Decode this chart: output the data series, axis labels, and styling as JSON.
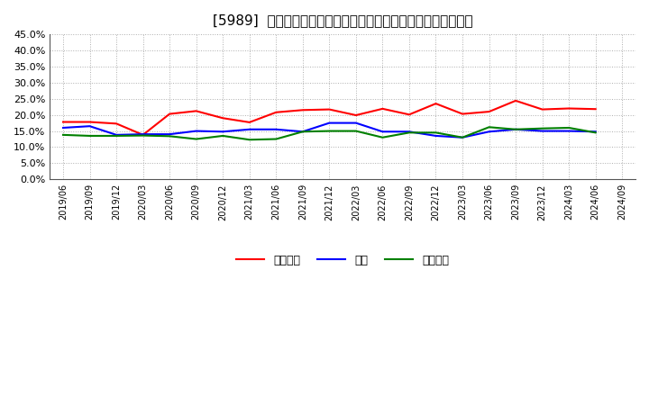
{
  "title": "[5989]  売上債権、在庫、買入債務の総資産に対する比率の推移",
  "dates": [
    "2019/06",
    "2019/09",
    "2019/12",
    "2020/03",
    "2020/06",
    "2020/09",
    "2020/12",
    "2021/03",
    "2021/06",
    "2021/09",
    "2021/12",
    "2022/03",
    "2022/06",
    "2022/09",
    "2022/12",
    "2023/03",
    "2023/06",
    "2023/09",
    "2023/12",
    "2024/03",
    "2024/06",
    "2024/09"
  ],
  "uriagedaiken": [
    17.8,
    17.8,
    17.3,
    13.8,
    20.3,
    21.2,
    19.0,
    17.7,
    20.8,
    21.5,
    21.7,
    19.9,
    21.9,
    20.1,
    23.5,
    20.3,
    21.0,
    24.4,
    21.7,
    22.0,
    21.8,
    null
  ],
  "zaiko": [
    16.0,
    16.5,
    13.8,
    14.0,
    14.0,
    15.0,
    14.8,
    15.5,
    15.5,
    14.8,
    17.5,
    17.5,
    14.8,
    14.8,
    13.5,
    13.0,
    14.8,
    15.5,
    15.0,
    15.0,
    14.8,
    null
  ],
  "kaiiredaimu": [
    13.8,
    13.5,
    13.5,
    13.6,
    13.4,
    12.5,
    13.5,
    12.3,
    12.5,
    14.8,
    15.0,
    15.0,
    13.0,
    14.5,
    14.5,
    13.0,
    16.2,
    15.5,
    15.8,
    16.0,
    14.5,
    null
  ],
  "legend_labels": [
    "売上債権",
    "在庫",
    "買入債務"
  ],
  "line_colors": [
    "#ff0000",
    "#0000ff",
    "#008000"
  ],
  "ylim": [
    0.0,
    45.0
  ],
  "yticks": [
    0.0,
    5.0,
    10.0,
    15.0,
    20.0,
    25.0,
    30.0,
    35.0,
    40.0,
    45.0
  ],
  "bg_color": "#ffffff",
  "grid_color": "#aaaaaa",
  "title_fontsize": 11
}
